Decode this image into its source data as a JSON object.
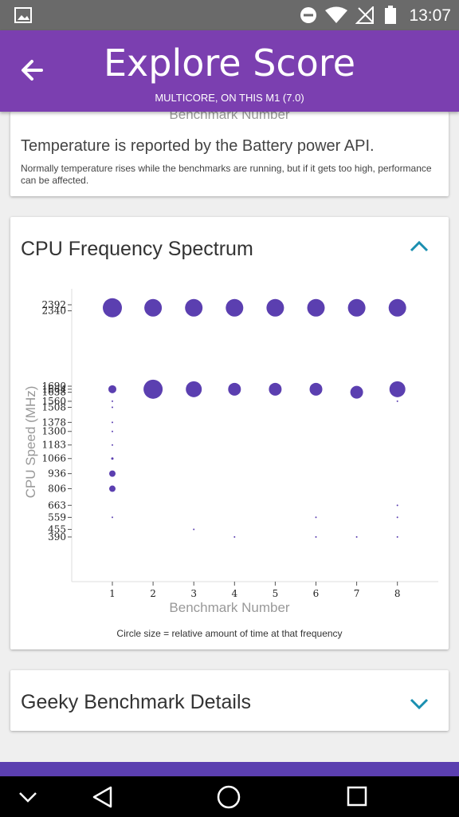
{
  "status_bar": {
    "time": "13:07"
  },
  "app_bar": {
    "title": "Explore Score",
    "subtitle": "MULTICORE, ON THIS M1 (7.0)"
  },
  "temperature_card": {
    "peek_label": "Benchmark Number",
    "heading": "Temperature is reported by the Battery power API.",
    "note": "Normally temperature rises while the benchmarks are running, but if it gets too high, performance can be affected."
  },
  "cpu_card": {
    "heading": "CPU Frequency Spectrum",
    "caption": "Circle size = relative amount of time at that frequency"
  },
  "chart_data": {
    "type": "scatter",
    "xlabel": "Benchmark Number",
    "ylabel": "CPU Speed (MHz)",
    "x_ticks": [
      1,
      2,
      3,
      4,
      5,
      6,
      7,
      8
    ],
    "y_ticks": [
      2392,
      2340,
      1690,
      1664,
      1638,
      1560,
      1508,
      1378,
      1300,
      1183,
      1066,
      936,
      806,
      663,
      559,
      455,
      390
    ],
    "y_tick_labels": [
      "2392",
      "2340",
      "1690",
      "1664",
      "1638",
      "1560",
      "1508",
      "1378",
      "1300",
      "1183",
      "1066",
      "936",
      "806",
      "663",
      "559",
      "455",
      "390"
    ],
    "xlim": [
      0,
      9
    ],
    "ylim": [
      200,
      2500
    ],
    "color": "#5b3fb0",
    "points": [
      {
        "x": 1,
        "y": 2366,
        "r": 12
      },
      {
        "x": 2,
        "y": 2366,
        "r": 11
      },
      {
        "x": 3,
        "y": 2366,
        "r": 11
      },
      {
        "x": 4,
        "y": 2366,
        "r": 11
      },
      {
        "x": 5,
        "y": 2366,
        "r": 11
      },
      {
        "x": 6,
        "y": 2366,
        "r": 11
      },
      {
        "x": 7,
        "y": 2366,
        "r": 11
      },
      {
        "x": 8,
        "y": 2366,
        "r": 11
      },
      {
        "x": 1,
        "y": 1664,
        "r": 5
      },
      {
        "x": 1,
        "y": 1638,
        "r": 1
      },
      {
        "x": 1,
        "y": 1560,
        "r": 1
      },
      {
        "x": 1,
        "y": 1508,
        "r": 1
      },
      {
        "x": 1,
        "y": 1378,
        "r": 1
      },
      {
        "x": 1,
        "y": 1300,
        "r": 1
      },
      {
        "x": 1,
        "y": 1183,
        "r": 1
      },
      {
        "x": 1,
        "y": 1066,
        "r": 1.5
      },
      {
        "x": 1,
        "y": 936,
        "r": 4
      },
      {
        "x": 1,
        "y": 806,
        "r": 4
      },
      {
        "x": 1,
        "y": 559,
        "r": 1
      },
      {
        "x": 2,
        "y": 1664,
        "r": 12
      },
      {
        "x": 3,
        "y": 1664,
        "r": 10
      },
      {
        "x": 3,
        "y": 455,
        "r": 1
      },
      {
        "x": 4,
        "y": 1664,
        "r": 8
      },
      {
        "x": 4,
        "y": 390,
        "r": 1
      },
      {
        "x": 5,
        "y": 1664,
        "r": 8
      },
      {
        "x": 6,
        "y": 1664,
        "r": 8
      },
      {
        "x": 6,
        "y": 559,
        "r": 1
      },
      {
        "x": 6,
        "y": 390,
        "r": 1
      },
      {
        "x": 7,
        "y": 1638,
        "r": 8
      },
      {
        "x": 7,
        "y": 390,
        "r": 1
      },
      {
        "x": 8,
        "y": 1664,
        "r": 10
      },
      {
        "x": 8,
        "y": 1560,
        "r": 1
      },
      {
        "x": 8,
        "y": 663,
        "r": 1
      },
      {
        "x": 8,
        "y": 559,
        "r": 1
      },
      {
        "x": 8,
        "y": 390,
        "r": 1
      }
    ]
  },
  "details_card": {
    "heading": "Geeky Benchmark Details"
  },
  "icons": {
    "back": "arrow-left-icon",
    "expand_less": "chevron-up-icon",
    "expand_more": "chevron-down-icon",
    "nav_back": "triangle-back-icon",
    "nav_home": "circle-home-icon",
    "nav_recents": "square-recents-icon"
  }
}
